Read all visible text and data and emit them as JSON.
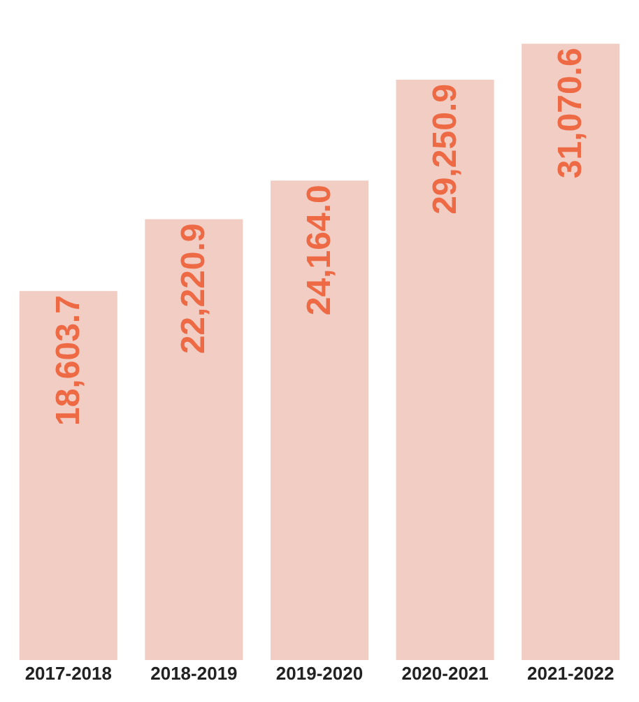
{
  "chart_data": {
    "type": "bar",
    "categories": [
      "2017-2018",
      "2018-2019",
      "2019-2020",
      "2020-2021",
      "2021-2022"
    ],
    "values": [
      18603.7,
      22220.9,
      24164.0,
      29250.9,
      31070.6
    ],
    "value_labels": [
      "18,603.7",
      "22,220.9",
      "24,164.0",
      "29,250.9",
      "31,070.6"
    ],
    "color": "#f1cdc4"
  }
}
